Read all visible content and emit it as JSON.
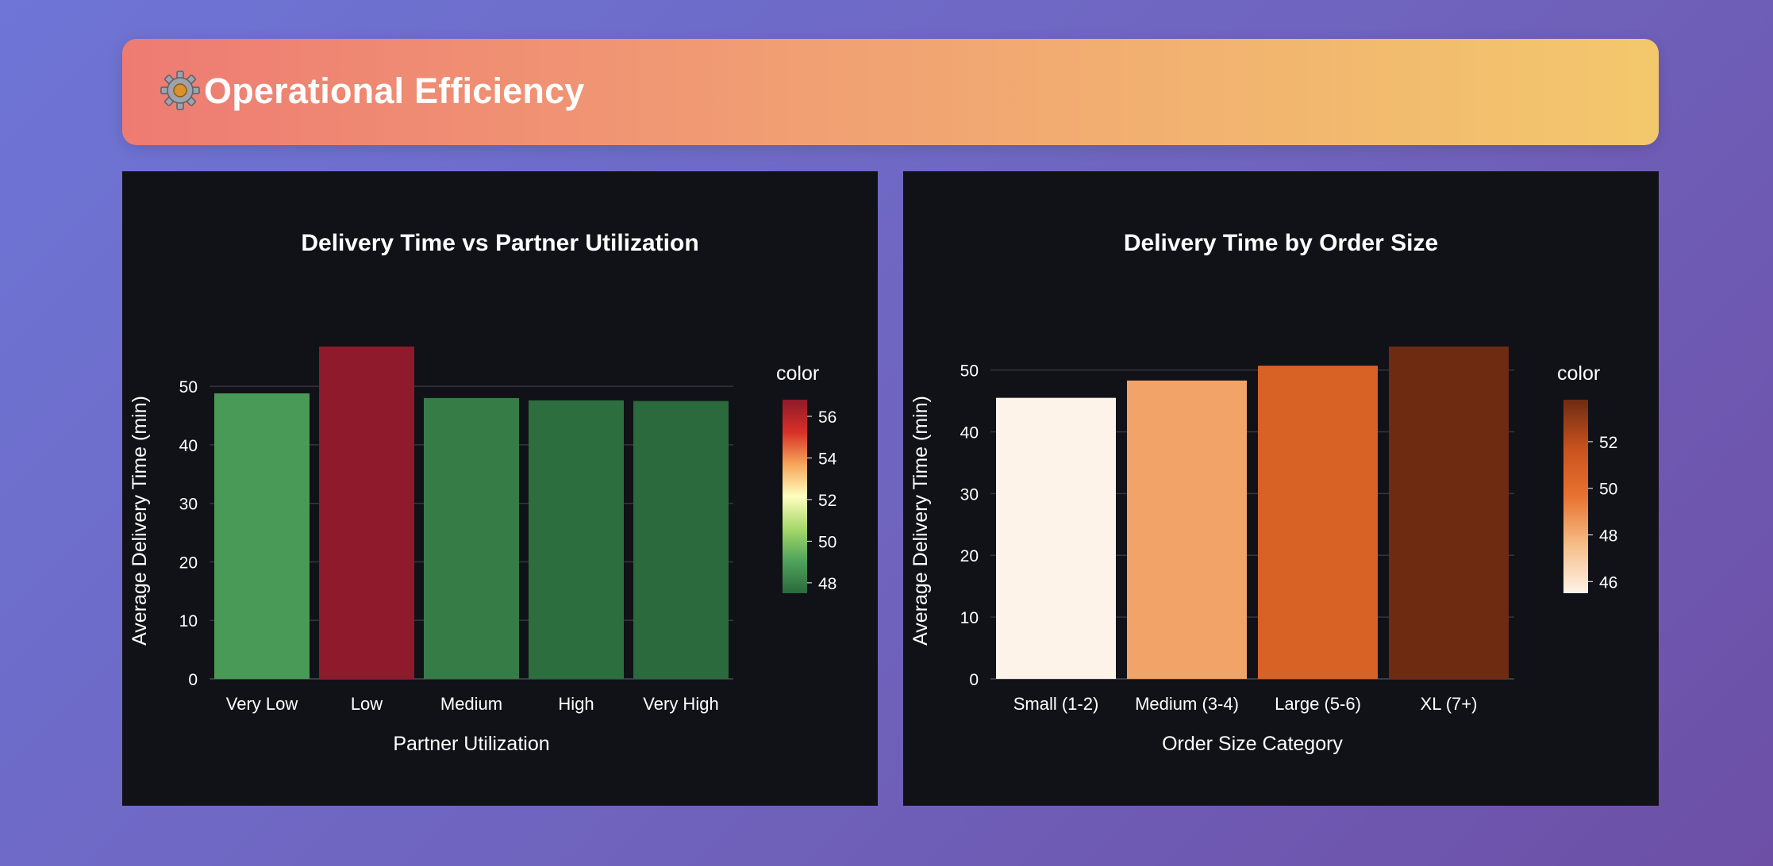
{
  "header": {
    "title": "Operational Efficiency",
    "icon": "gear-icon"
  },
  "chart_data": [
    {
      "type": "bar",
      "title": "Delivery Time vs Partner Utilization",
      "xlabel": "Partner Utilization",
      "ylabel": "Average Delivery Time (min)",
      "categories": [
        "Very Low",
        "Low",
        "Medium",
        "High",
        "Very High"
      ],
      "values": [
        48.8,
        56.8,
        48.0,
        47.6,
        47.5
      ],
      "ylim": [
        0,
        56.8
      ],
      "yticks": [
        0,
        10,
        20,
        30,
        40,
        50
      ],
      "grid": true,
      "legend": {
        "title": "color",
        "placement": "right",
        "colorscale": "RdYlGn_r",
        "range": [
          47.5,
          56.8
        ],
        "ticks": [
          48,
          50,
          52,
          54,
          56
        ]
      },
      "colors": {
        "stops": [
          "#2a6a3c",
          "#4fa35b",
          "#a6d86a",
          "#ffffbf",
          "#f7a55a",
          "#d73027",
          "#8f1a2b"
        ]
      }
    },
    {
      "type": "bar",
      "title": "Delivery Time by Order Size",
      "xlabel": "Order Size Category",
      "ylabel": "Average Delivery Time (min)",
      "categories": [
        "Small (1-2)",
        "Medium (3-4)",
        "Large (5-6)",
        "XL (7+)"
      ],
      "values": [
        45.5,
        48.3,
        50.7,
        53.8
      ],
      "ylim": [
        0,
        53.8
      ],
      "yticks": [
        0,
        10,
        20,
        30,
        40,
        50
      ],
      "grid": true,
      "legend": {
        "title": "color",
        "placement": "right",
        "colorscale": "Oranges",
        "range": [
          45.5,
          53.8
        ],
        "ticks": [
          46,
          48,
          50,
          52
        ]
      },
      "colors": {
        "stops": [
          "#fef3e9",
          "#f6bd87",
          "#e8722f",
          "#c8521e",
          "#6f2b12"
        ]
      }
    }
  ]
}
